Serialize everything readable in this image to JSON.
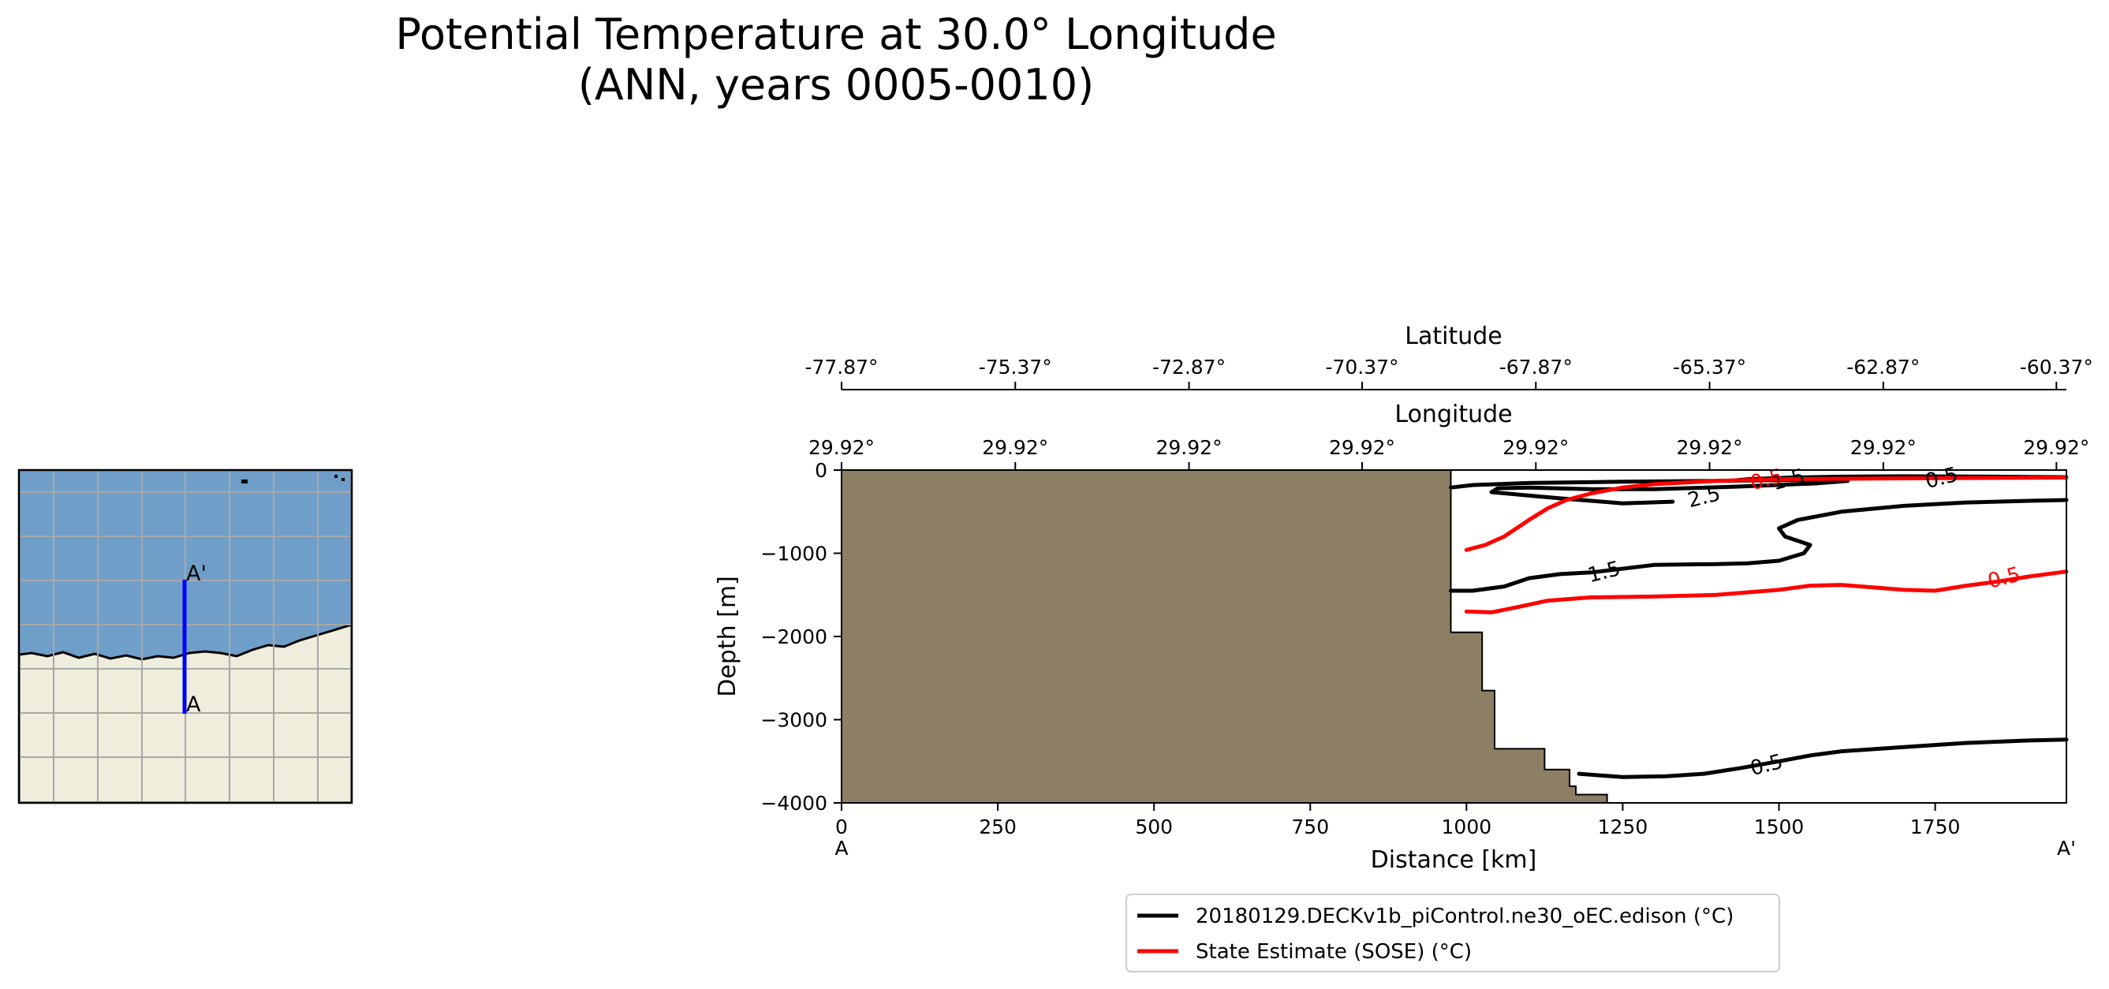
{
  "title": {
    "line1": "Potential Temperature at 30.0° Longitude",
    "line2": "(ANN, years 0005-0010)"
  },
  "inset_map": {
    "label_a": "A",
    "label_a_prime": "A'",
    "colors": {
      "ocean": "#6f9fc9",
      "land": "#efeddc",
      "grid": "#a8a8a8",
      "transect": "#0000ff",
      "coast": "#000000"
    }
  },
  "colors": {
    "model": "#000000",
    "obs": "#ff0000",
    "bathymetry": "#8d7f64"
  },
  "chart_data": {
    "type": "contour",
    "xlabel": "Distance [km]",
    "ylabel": "Depth [m]",
    "xlim": [
      0,
      1960
    ],
    "ylim": [
      -4000,
      0
    ],
    "x_ticks": [
      0,
      250,
      500,
      750,
      1000,
      1250,
      1500,
      1750
    ],
    "x_tick_labels": [
      "0",
      "250",
      "500",
      "750",
      "1000",
      "1250",
      "1500",
      "1750"
    ],
    "y_ticks": [
      0,
      -1000,
      -2000,
      -3000,
      -4000
    ],
    "y_tick_labels": [
      "0",
      "−1000",
      "−2000",
      "−3000",
      "−4000"
    ],
    "x_start_label": "A",
    "x_end_label": "A'",
    "longitude_axis": {
      "label": "Longitude",
      "positions": [
        0,
        278,
        556,
        833,
        1111,
        1389,
        1667,
        1944
      ],
      "tick_labels": [
        "29.92°",
        "29.92°",
        "29.92°",
        "29.92°",
        "29.92°",
        "29.92°",
        "29.92°",
        "29.92°"
      ]
    },
    "latitude_axis": {
      "label": "Latitude",
      "positions": [
        0,
        278,
        556,
        833,
        1111,
        1389,
        1667,
        1944
      ],
      "tick_labels": [
        "-77.87°",
        "-75.37°",
        "-72.87°",
        "-70.37°",
        "-67.87°",
        "-65.37°",
        "-62.87°",
        "-60.37°"
      ]
    },
    "bathymetry": [
      [
        0,
        0
      ],
      [
        975,
        0
      ],
      [
        975,
        -1950
      ],
      [
        1025,
        -1950
      ],
      [
        1025,
        -2650
      ],
      [
        1045,
        -2650
      ],
      [
        1045,
        -3350
      ],
      [
        1125,
        -3350
      ],
      [
        1125,
        -3600
      ],
      [
        1165,
        -3600
      ],
      [
        1165,
        -3800
      ],
      [
        1175,
        -3800
      ],
      [
        1175,
        -3900
      ],
      [
        1225,
        -3900
      ],
      [
        1225,
        -4000
      ],
      [
        0,
        -4000
      ]
    ],
    "legend": [
      {
        "label": "20180129.DECKv1b_piControl.ne30_oEC.edison (°C)",
        "series": "model"
      },
      {
        "label": "State Estimate (SOSE) (°C)",
        "series": "obs"
      }
    ],
    "series": [
      {
        "name": "model",
        "level": 2.5,
        "points": [
          [
            975,
            -210
          ],
          [
            1010,
            -180
          ],
          [
            1100,
            -155
          ],
          [
            1250,
            -140
          ],
          [
            1400,
            -130
          ],
          [
            1500,
            -120
          ],
          [
            1600,
            -115
          ],
          [
            1610,
            -130
          ],
          [
            1560,
            -160
          ],
          [
            1430,
            -200
          ],
          [
            1300,
            -230
          ],
          [
            1200,
            -230
          ],
          [
            1100,
            -210
          ],
          [
            1050,
            -220
          ],
          [
            1040,
            -265
          ],
          [
            1090,
            -300
          ],
          [
            1150,
            -340
          ],
          [
            1250,
            -400
          ],
          [
            1330,
            -380
          ]
        ]
      },
      {
        "name": "model",
        "level": 1.5,
        "points": [
          [
            975,
            -1450
          ],
          [
            1010,
            -1450
          ],
          [
            1060,
            -1400
          ],
          [
            1100,
            -1300
          ],
          [
            1150,
            -1250
          ],
          [
            1200,
            -1230
          ],
          [
            1300,
            -1140
          ],
          [
            1400,
            -1130
          ],
          [
            1450,
            -1120
          ],
          [
            1500,
            -1090
          ],
          [
            1540,
            -1000
          ],
          [
            1550,
            -900
          ],
          [
            1510,
            -800
          ],
          [
            1500,
            -700
          ],
          [
            1530,
            -600
          ],
          [
            1600,
            -500
          ],
          [
            1700,
            -430
          ],
          [
            1800,
            -390
          ],
          [
            1900,
            -370
          ],
          [
            1960,
            -360
          ]
        ]
      },
      {
        "name": "model",
        "level": 1.5,
        "points": [
          [
            1420,
            -130
          ],
          [
            1450,
            -110
          ],
          [
            1520,
            -90
          ],
          [
            1600,
            -80
          ],
          [
            1700,
            -75
          ],
          [
            1850,
            -80
          ],
          [
            1960,
            -85
          ]
        ]
      },
      {
        "name": "model",
        "level": 0.5,
        "points": [
          [
            1180,
            -3650
          ],
          [
            1250,
            -3690
          ],
          [
            1320,
            -3680
          ],
          [
            1380,
            -3650
          ],
          [
            1440,
            -3580
          ],
          [
            1500,
            -3500
          ],
          [
            1550,
            -3430
          ],
          [
            1600,
            -3380
          ],
          [
            1700,
            -3330
          ],
          [
            1800,
            -3280
          ],
          [
            1900,
            -3250
          ],
          [
            1960,
            -3240
          ]
        ]
      },
      {
        "name": "obs",
        "level": 0.5,
        "points": [
          [
            1000,
            -960
          ],
          [
            1030,
            -900
          ],
          [
            1060,
            -800
          ],
          [
            1080,
            -700
          ],
          [
            1100,
            -600
          ],
          [
            1130,
            -460
          ],
          [
            1160,
            -360
          ],
          [
            1200,
            -280
          ],
          [
            1250,
            -210
          ],
          [
            1300,
            -170
          ],
          [
            1400,
            -130
          ],
          [
            1500,
            -110
          ],
          [
            1700,
            -100
          ],
          [
            1960,
            -90
          ]
        ]
      },
      {
        "name": "obs",
        "level": 0.5,
        "points": [
          [
            1000,
            -1700
          ],
          [
            1040,
            -1710
          ],
          [
            1080,
            -1650
          ],
          [
            1130,
            -1570
          ],
          [
            1200,
            -1530
          ],
          [
            1300,
            -1520
          ],
          [
            1400,
            -1500
          ],
          [
            1500,
            -1440
          ],
          [
            1550,
            -1390
          ],
          [
            1600,
            -1380
          ],
          [
            1700,
            -1440
          ],
          [
            1750,
            -1450
          ],
          [
            1800,
            -1390
          ],
          [
            1850,
            -1340
          ],
          [
            1900,
            -1280
          ],
          [
            1960,
            -1220
          ]
        ]
      }
    ],
    "contour_labels": [
      {
        "text": "2.5",
        "x": 1380,
        "y": -320,
        "series": "model"
      },
      {
        "text": "1.5",
        "x": 1515,
        "y": -110,
        "series": "model"
      },
      {
        "text": "0.5",
        "x": 1480,
        "y": -110,
        "series": "obs"
      },
      {
        "text": "0.5",
        "x": 1760,
        "y": -90,
        "series": "model"
      },
      {
        "text": "1.5",
        "x": 1220,
        "y": -1220,
        "series": "model"
      },
      {
        "text": "0.5",
        "x": 1860,
        "y": -1290,
        "series": "obs"
      },
      {
        "text": "0.5",
        "x": 1480,
        "y": -3540,
        "series": "model"
      }
    ]
  }
}
